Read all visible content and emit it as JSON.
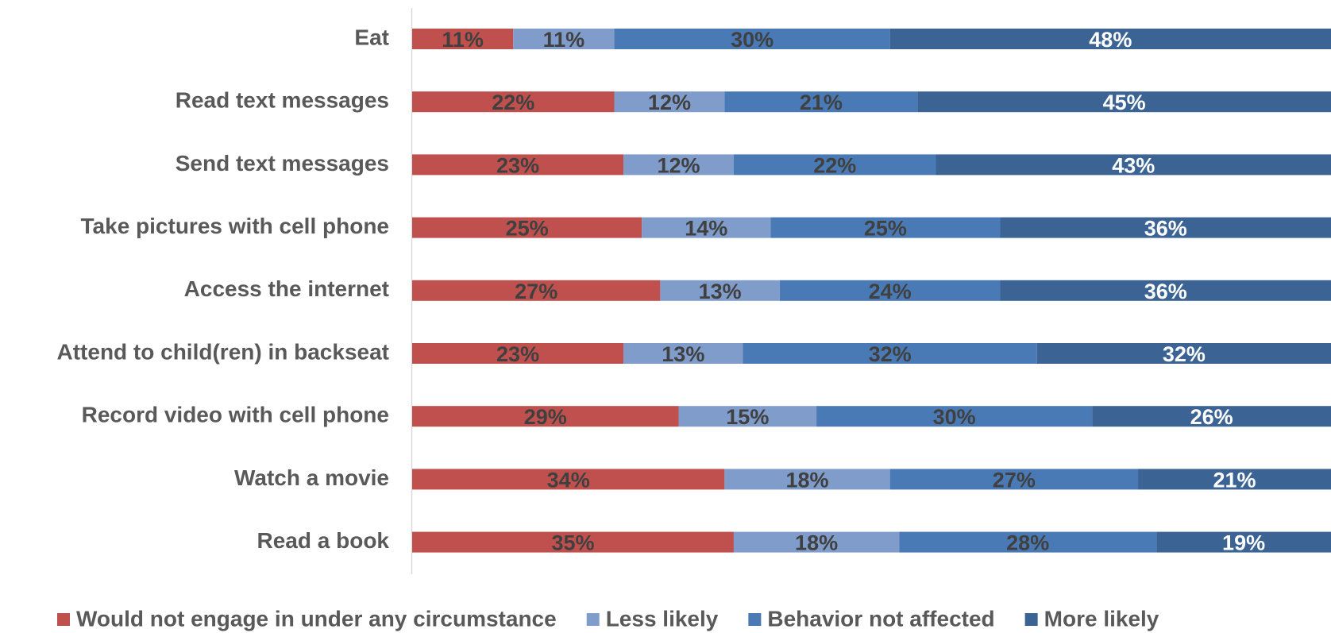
{
  "chart_data": {
    "type": "bar",
    "orientation": "horizontal",
    "stacked": true,
    "percent": true,
    "categories": [
      "Eat",
      "Read text messages",
      "Send text messages",
      "Take pictures with cell phone",
      "Access the internet",
      "Attend to child(ren) in backseat",
      "Record video with cell phone",
      "Watch a movie",
      "Read a book"
    ],
    "series": [
      {
        "name": "Would not engage in under any circumstance",
        "color": "#C0504D",
        "label_color": "#404040",
        "values": [
          11,
          22,
          23,
          25,
          27,
          23,
          29,
          34,
          35
        ]
      },
      {
        "name": "Less likely",
        "color": "#7F9CCB",
        "label_color": "#404040",
        "values": [
          11,
          12,
          12,
          14,
          13,
          13,
          15,
          18,
          18
        ]
      },
      {
        "name": "Behavior not affected",
        "color": "#4A7AB5",
        "label_color": "#404040",
        "values": [
          30,
          21,
          22,
          25,
          24,
          32,
          30,
          27,
          28
        ]
      },
      {
        "name": "More likely",
        "color": "#3B6494",
        "label_color": "#ffffff",
        "values": [
          48,
          45,
          43,
          36,
          36,
          32,
          26,
          21,
          19
        ]
      }
    ],
    "xlim": [
      0,
      100
    ],
    "grid": false,
    "legend_position": "bottom"
  }
}
